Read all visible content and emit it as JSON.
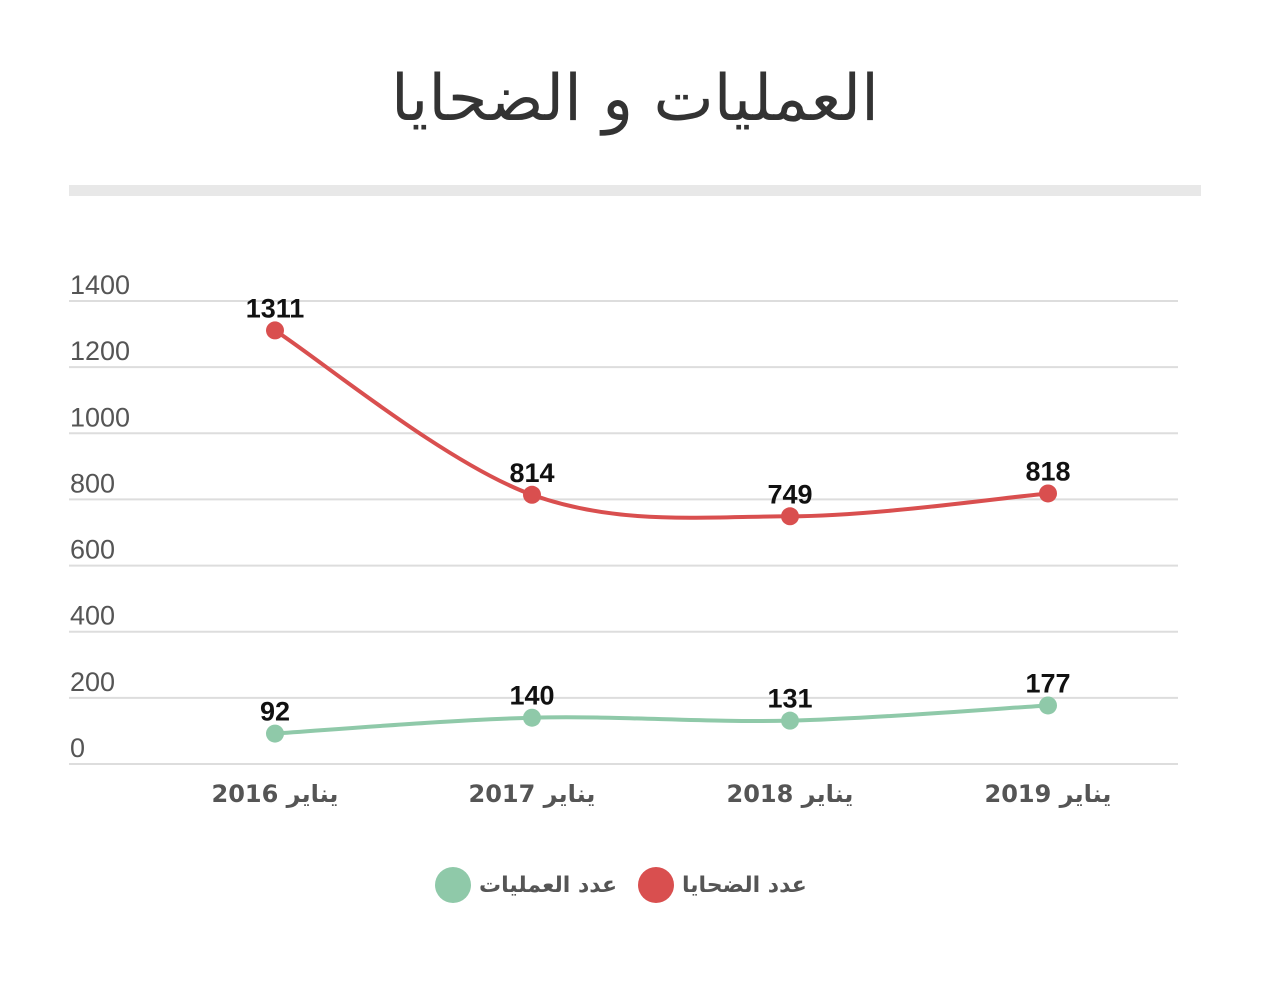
{
  "chart_data": {
    "type": "line",
    "title": "العمليات و الضحايا",
    "categories": [
      "يناير 2016",
      "يناير 2017",
      "يناير 2018",
      "يناير 2019"
    ],
    "series": [
      {
        "name": "عدد الضحايا",
        "color": "#d94f4f",
        "values": [
          1311,
          814,
          749,
          818
        ]
      },
      {
        "name": "عدد العمليات",
        "color": "#8fc9a9",
        "values": [
          92,
          140,
          131,
          177
        ]
      }
    ],
    "ylim": [
      0,
      1400
    ],
    "yticks": [
      0,
      200,
      400,
      600,
      800,
      1000,
      1200,
      1400
    ],
    "grid": true,
    "legend": "bottom",
    "xlabel": "",
    "ylabel": ""
  }
}
